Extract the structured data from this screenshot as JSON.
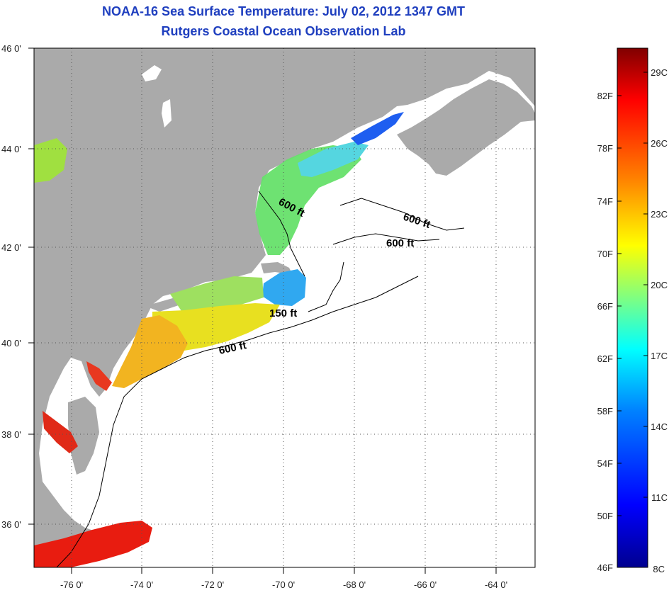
{
  "header": {
    "title": "NOAA-16 Sea Surface Temperature:  July 02, 2012 1347 GMT",
    "subtitle": "Rutgers Coastal Ocean Observation Lab"
  },
  "map": {
    "lat_labels": [
      "46 0'",
      "44 0'",
      "42 0'",
      "40 0'",
      "38 0'",
      "36 0'"
    ],
    "lon_labels": [
      "-76 0'",
      "-74 0'",
      "-72 0'",
      "-70 0'",
      "-68 0'",
      "-66 0'",
      "-64 0'"
    ],
    "contour_labels": [
      "600 ft",
      "600 ft",
      "600 ft",
      "150 ft",
      "600 ft"
    ],
    "colors": {
      "land": "#aaaaaa",
      "ocean_nodata": "#ffffff"
    }
  },
  "colorbar": {
    "fahrenheit_labels": [
      "82F",
      "78F",
      "74F",
      "70F",
      "66F",
      "62F",
      "58F",
      "54F",
      "50F",
      "46F"
    ],
    "celsius_labels": [
      "29C",
      "26C",
      "23C",
      "20C",
      "17C",
      "14C",
      "11C",
      "8C"
    ],
    "range_f": [
      46,
      86
    ],
    "colors": [
      "#00008f",
      "#0000ff",
      "#0080ff",
      "#00ffff",
      "#80ff80",
      "#ffff00",
      "#ff8000",
      "#ff0000",
      "#800000"
    ]
  }
}
